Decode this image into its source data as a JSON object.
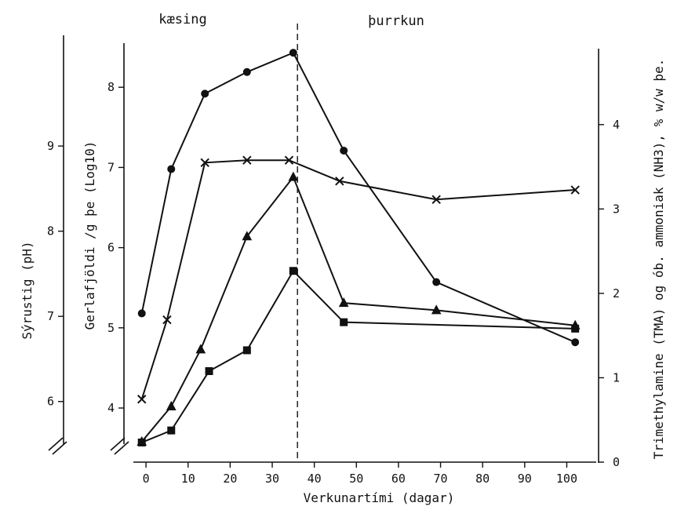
{
  "chart_data": {
    "type": "line",
    "phases": [
      "kæsing",
      "þurrkun"
    ],
    "phase_boundary_day": 36,
    "x_axis": {
      "label": "Verkunartími (dagar)",
      "ticks": [
        0,
        10,
        20,
        30,
        40,
        50,
        60,
        70,
        80,
        90,
        100
      ],
      "range": [
        -3,
        107
      ]
    },
    "y_axes": [
      {
        "id": "ph",
        "label": "Sýrustig (pH)",
        "ticks": [
          6,
          7,
          8,
          9
        ],
        "range": [
          5.5,
          10.3
        ],
        "position": "left-outer"
      },
      {
        "id": "bact",
        "label": "Gerlafjöldi /g þe (Log10)",
        "ticks": [
          4,
          5,
          6,
          7,
          8
        ],
        "range": [
          3.55,
          8.55
        ],
        "position": "left-inner"
      },
      {
        "id": "chem",
        "label": "Trimethylamine (TMA) og ób. ammoniak (NH3), % w/w þe.",
        "ticks": [
          0,
          1,
          2,
          3,
          4
        ],
        "range": [
          0,
          4.9
        ],
        "position": "right"
      }
    ],
    "series": [
      {
        "marker": "circle",
        "axis": "bact",
        "x": [
          -1,
          6,
          14,
          24,
          35,
          47,
          69,
          102
        ],
        "y": [
          5.18,
          6.98,
          7.92,
          8.19,
          8.43,
          7.21,
          5.57,
          4.82
        ]
      },
      {
        "marker": "cross",
        "axis": "bact",
        "x": [
          -1,
          5,
          14,
          24,
          34,
          46,
          69,
          102
        ],
        "y": [
          4.11,
          5.1,
          7.06,
          7.09,
          7.09,
          6.83,
          6.6,
          6.72
        ]
      },
      {
        "marker": "triangle",
        "axis": "bact",
        "x": [
          -1,
          6,
          13,
          24,
          35,
          47,
          69,
          102
        ],
        "y": [
          3.58,
          4.02,
          4.73,
          6.14,
          6.88,
          5.31,
          5.22,
          5.03
        ]
      },
      {
        "marker": "square",
        "axis": "bact",
        "x": [
          -1,
          6,
          15,
          24,
          35,
          47,
          102
        ],
        "y": [
          3.57,
          3.72,
          4.46,
          4.72,
          5.71,
          5.07,
          4.99
        ]
      }
    ],
    "grid": false
  }
}
